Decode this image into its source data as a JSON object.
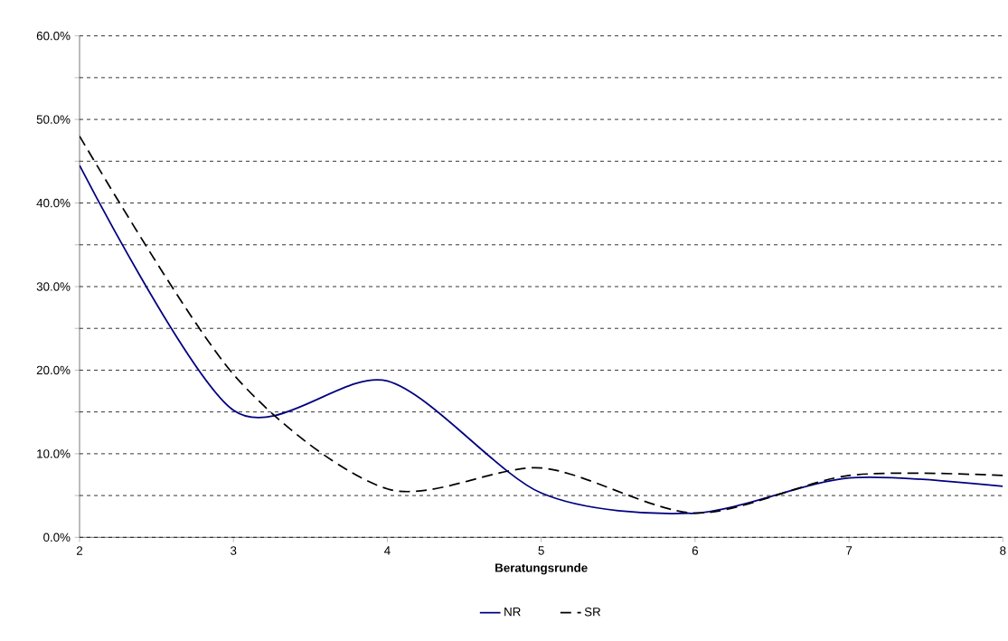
{
  "chart_data": {
    "type": "line",
    "xlabel": "Beratungsrunde",
    "x": [
      2,
      3,
      4,
      5,
      6,
      7,
      8
    ],
    "xlim": [
      2,
      8
    ],
    "xticks": [
      2,
      3,
      4,
      5,
      6,
      7,
      8
    ],
    "ylim": [
      0,
      60
    ],
    "yticks": [
      {
        "value": 0,
        "label": "0.0%"
      },
      {
        "value": 5,
        "label": null
      },
      {
        "value": 10,
        "label": "10.0%"
      },
      {
        "value": 15,
        "label": null
      },
      {
        "value": 20,
        "label": "20.0%"
      },
      {
        "value": 25,
        "label": null
      },
      {
        "value": 30,
        "label": "30.0%"
      },
      {
        "value": 35,
        "label": null
      },
      {
        "value": 40,
        "label": "40.0%"
      },
      {
        "value": 45,
        "label": null
      },
      {
        "value": 50,
        "label": "50.0%"
      },
      {
        "value": 55,
        "label": null
      },
      {
        "value": 60,
        "label": "60.0%"
      }
    ],
    "grid": "y",
    "legend": "bottom",
    "marker": "none",
    "series": [
      {
        "name": "NR",
        "color": "#000080",
        "line_style": "solid",
        "values": [
          44.5,
          15.2,
          18.7,
          5.3,
          2.9,
          7.1,
          6.1
        ]
      },
      {
        "name": "SR",
        "color": "#000000",
        "line_style": "dashed",
        "values": [
          48.0,
          19.5,
          5.8,
          8.3,
          2.9,
          7.4,
          7.4
        ]
      }
    ]
  }
}
